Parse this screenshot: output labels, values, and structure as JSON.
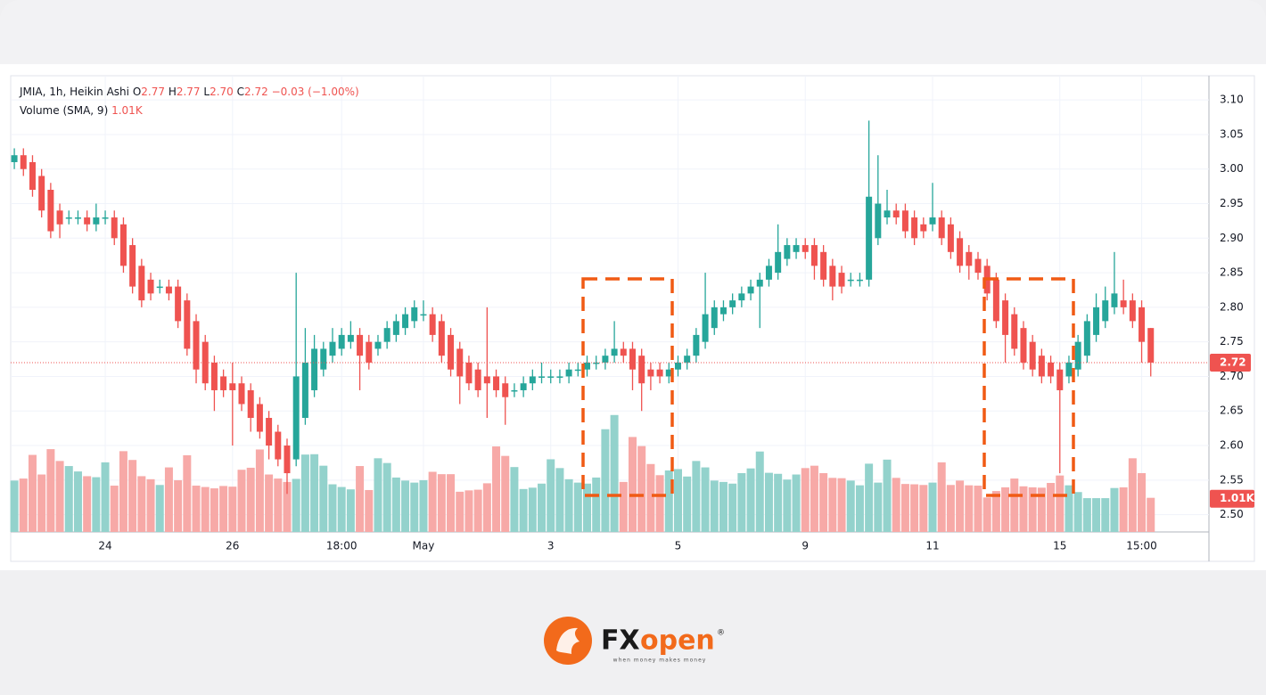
{
  "chart_data": {
    "type": "candlestick",
    "symbol": "JMIA, 1h, Heikin Ashi",
    "ohlc_labels": {
      "o": "O",
      "o_value": "2.77",
      "h": "H",
      "h_value": "2.77",
      "l": "L",
      "l_value": "2.70",
      "c": "C",
      "c_value": "2.72",
      "change": "−0.03 (−1.00%)"
    },
    "volume_title": "Volume (SMA, 9)",
    "last_volume_label": "1.01K",
    "up_color": "#26a69a",
    "down_color": "#ef5350",
    "volume_up_color": "#93d2cc",
    "volume_down_color": "#f7a9a7",
    "grid": true,
    "xlim": [
      -0.4,
      131.4
    ],
    "xticks": [
      {
        "value": 10,
        "label": "24"
      },
      {
        "value": 24,
        "label": "26"
      },
      {
        "value": 36,
        "label": "18:00"
      },
      {
        "value": 45,
        "label": "May"
      },
      {
        "value": 59,
        "label": "3"
      },
      {
        "value": 73,
        "label": "5"
      },
      {
        "value": 87,
        "label": "9"
      },
      {
        "value": 101,
        "label": "11"
      },
      {
        "value": 115,
        "label": "15"
      },
      {
        "value": 124,
        "label": "15:00"
      }
    ],
    "ylim": [
      2.475,
      3.135
    ],
    "yticks": [
      {
        "value": 2.5,
        "label": "2.50"
      },
      2.55,
      {
        "value": 2.6,
        "label": "2.60"
      },
      2.65,
      {
        "value": 2.7,
        "label": "2.70"
      },
      2.75,
      {
        "value": 2.8,
        "label": "2.80"
      },
      2.85,
      {
        "value": 2.9,
        "label": "2.90"
      },
      2.95,
      {
        "value": 3.0,
        "label": "3.00"
      },
      3.05,
      {
        "value": 3.1,
        "label": "3.10"
      }
    ],
    "volume_ylim": [
      0,
      13500
    ],
    "open": [
      3.01,
      3.02,
      3.01,
      2.99,
      2.97,
      2.94,
      2.93,
      2.93,
      2.93,
      2.92,
      2.93,
      2.93,
      2.92,
      2.89,
      2.86,
      2.84,
      2.83,
      2.83,
      2.83,
      2.81,
      2.78,
      2.75,
      2.72,
      2.7,
      2.69,
      2.69,
      2.68,
      2.66,
      2.64,
      2.62,
      2.6,
      2.58,
      2.64,
      2.68,
      2.71,
      2.73,
      2.74,
      2.75,
      2.76,
      2.75,
      2.74,
      2.75,
      2.76,
      2.77,
      2.78,
      2.79,
      2.79,
      2.78,
      2.76,
      2.74,
      2.72,
      2.71,
      2.7,
      2.7,
      2.69,
      2.68,
      2.68,
      2.69,
      2.7,
      2.7,
      2.7,
      2.7,
      2.71,
      2.71,
      2.72,
      2.72,
      2.73,
      2.74,
      2.74,
      2.73,
      2.71,
      2.71,
      2.7,
      2.71,
      2.72,
      2.73,
      2.75,
      2.77,
      2.79,
      2.8,
      2.81,
      2.82,
      2.83,
      2.84,
      2.85,
      2.87,
      2.88,
      2.89,
      2.89,
      2.88,
      2.86,
      2.85,
      2.84,
      2.84,
      2.84,
      2.9,
      2.93,
      2.94,
      2.94,
      2.93,
      2.92,
      2.92,
      2.93,
      2.92,
      2.9,
      2.88,
      2.87,
      2.86,
      2.84,
      2.81,
      2.79,
      2.77,
      2.75,
      2.73,
      2.72,
      2.71,
      2.7,
      2.71,
      2.73,
      2.76,
      2.78,
      2.8,
      2.81,
      2.81,
      2.8,
      2.77
    ],
    "high": [
      3.03,
      3.03,
      3.02,
      3.0,
      2.98,
      2.95,
      2.94,
      2.94,
      2.94,
      2.95,
      2.94,
      2.94,
      2.93,
      2.9,
      2.87,
      2.85,
      2.84,
      2.84,
      2.84,
      2.82,
      2.79,
      2.76,
      2.73,
      2.71,
      2.72,
      2.7,
      2.69,
      2.67,
      2.65,
      2.63,
      2.61,
      2.85,
      2.77,
      2.76,
      2.75,
      2.77,
      2.77,
      2.78,
      2.77,
      2.76,
      2.76,
      2.78,
      2.79,
      2.8,
      2.81,
      2.81,
      2.8,
      2.79,
      2.77,
      2.75,
      2.73,
      2.72,
      2.8,
      2.71,
      2.7,
      2.69,
      2.7,
      2.71,
      2.72,
      2.71,
      2.71,
      2.72,
      2.72,
      2.73,
      2.73,
      2.74,
      2.78,
      2.75,
      2.75,
      2.74,
      2.72,
      2.72,
      2.72,
      2.73,
      2.74,
      2.77,
      2.85,
      2.81,
      2.81,
      2.82,
      2.83,
      2.84,
      2.85,
      2.87,
      2.92,
      2.9,
      2.9,
      2.9,
      2.9,
      2.89,
      2.87,
      2.86,
      2.85,
      2.85,
      3.07,
      3.02,
      2.97,
      2.95,
      2.95,
      2.94,
      2.93,
      2.98,
      2.94,
      2.93,
      2.91,
      2.89,
      2.88,
      2.87,
      2.85,
      2.82,
      2.8,
      2.78,
      2.76,
      2.74,
      2.73,
      2.72,
      2.73,
      2.76,
      2.79,
      2.82,
      2.83,
      2.88,
      2.84,
      2.82,
      2.81,
      2.77
    ],
    "low": [
      3.0,
      2.99,
      2.96,
      2.93,
      2.9,
      2.9,
      2.92,
      2.92,
      2.91,
      2.91,
      2.92,
      2.89,
      2.85,
      2.82,
      2.8,
      2.81,
      2.82,
      2.81,
      2.77,
      2.73,
      2.69,
      2.68,
      2.65,
      2.67,
      2.6,
      2.65,
      2.62,
      2.61,
      2.58,
      2.57,
      2.53,
      2.57,
      2.63,
      2.67,
      2.7,
      2.72,
      2.73,
      2.74,
      2.68,
      2.71,
      2.73,
      2.74,
      2.75,
      2.76,
      2.77,
      2.78,
      2.75,
      2.72,
      2.7,
      2.66,
      2.68,
      2.67,
      2.64,
      2.67,
      2.63,
      2.67,
      2.67,
      2.68,
      2.69,
      2.69,
      2.69,
      2.69,
      2.7,
      2.7,
      2.71,
      2.71,
      2.72,
      2.72,
      2.68,
      2.65,
      2.68,
      2.69,
      2.69,
      2.7,
      2.71,
      2.72,
      2.74,
      2.76,
      2.78,
      2.79,
      2.8,
      2.81,
      2.77,
      2.83,
      2.84,
      2.86,
      2.87,
      2.87,
      2.84,
      2.83,
      2.81,
      2.82,
      2.83,
      2.83,
      2.83,
      2.89,
      2.92,
      2.92,
      2.9,
      2.89,
      2.9,
      2.91,
      2.89,
      2.87,
      2.85,
      2.84,
      2.84,
      2.81,
      2.77,
      2.72,
      2.73,
      2.71,
      2.7,
      2.69,
      2.69,
      2.56,
      2.69,
      2.7,
      2.72,
      2.75,
      2.77,
      2.79,
      2.79,
      2.77,
      2.72,
      2.7
    ],
    "close": [
      3.02,
      3.0,
      2.97,
      2.94,
      2.91,
      2.92,
      2.93,
      2.93,
      2.92,
      2.93,
      2.93,
      2.9,
      2.86,
      2.83,
      2.81,
      2.82,
      2.83,
      2.82,
      2.78,
      2.74,
      2.71,
      2.69,
      2.68,
      2.68,
      2.68,
      2.66,
      2.64,
      2.62,
      2.6,
      2.58,
      2.56,
      2.7,
      2.72,
      2.74,
      2.74,
      2.75,
      2.76,
      2.76,
      2.73,
      2.72,
      2.75,
      2.77,
      2.78,
      2.79,
      2.8,
      2.79,
      2.76,
      2.73,
      2.71,
      2.7,
      2.69,
      2.68,
      2.69,
      2.68,
      2.67,
      2.68,
      2.69,
      2.7,
      2.7,
      2.7,
      2.7,
      2.71,
      2.71,
      2.72,
      2.72,
      2.73,
      2.74,
      2.73,
      2.71,
      2.69,
      2.7,
      2.7,
      2.71,
      2.72,
      2.73,
      2.76,
      2.79,
      2.8,
      2.8,
      2.81,
      2.82,
      2.83,
      2.84,
      2.86,
      2.88,
      2.89,
      2.89,
      2.88,
      2.86,
      2.84,
      2.83,
      2.83,
      2.84,
      2.84,
      2.96,
      2.95,
      2.94,
      2.93,
      2.91,
      2.9,
      2.91,
      2.93,
      2.9,
      2.88,
      2.86,
      2.86,
      2.85,
      2.82,
      2.78,
      2.76,
      2.74,
      2.72,
      2.71,
      2.7,
      2.7,
      2.68,
      2.72,
      2.75,
      2.78,
      2.8,
      2.81,
      2.82,
      2.8,
      2.78,
      2.75,
      2.72
    ],
    "volume": [
      1520,
      1580,
      2280,
      1700,
      2450,
      2100,
      1950,
      1790,
      1650,
      1620,
      2060,
      1370,
      2390,
      2130,
      1650,
      1560,
      1390,
      1910,
      1530,
      2270,
      1370,
      1330,
      1290,
      1360,
      1340,
      1840,
      1900,
      2440,
      1700,
      1580,
      1480,
      1570,
      2290,
      2300,
      1960,
      1410,
      1330,
      1260,
      1950,
      1240,
      2180,
      2040,
      1610,
      1520,
      1460,
      1530,
      1780,
      1710,
      1710,
      1190,
      1230,
      1250,
      1440,
      2530,
      2250,
      1920,
      1270,
      1310,
      1430,
      2150,
      1890,
      1560,
      1460,
      1430,
      1610,
      3040,
      3460,
      1480,
      2810,
      2540,
      2010,
      1680,
      1820,
      1860,
      1640,
      2100,
      1910,
      1520,
      1480,
      1430,
      1740,
      1880,
      2380,
      1750,
      1720,
      1550,
      1700,
      1890,
      1960,
      1740,
      1600,
      1590,
      1520,
      1380,
      2020,
      1460,
      2140,
      1600,
      1420,
      1410,
      1390,
      1460,
      2060,
      1390,
      1520,
      1380,
      1370,
      1020,
      1210,
      1320,
      1580,
      1350,
      1320,
      1310,
      1450,
      1670,
      1380,
      1180,
      1000,
      1000,
      1000,
      1300,
      1320,
      2180,
      1740,
      1010
    ]
  },
  "branding": {
    "name_a": "FX",
    "name_b": "open",
    "registered": "®",
    "tagline": "when money makes money"
  }
}
